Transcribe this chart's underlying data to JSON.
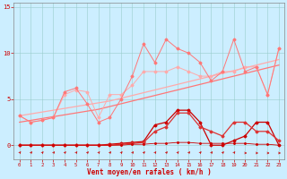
{
  "x": [
    0,
    1,
    2,
    3,
    4,
    5,
    6,
    7,
    8,
    9,
    10,
    11,
    12,
    13,
    14,
    15,
    16,
    17,
    18,
    19,
    20,
    21,
    22,
    23
  ],
  "line_light_jagged": [
    3.2,
    2.5,
    2.7,
    3.0,
    5.5,
    6.0,
    5.8,
    3.0,
    5.5,
    5.5,
    6.5,
    8.0,
    8.0,
    8.0,
    8.5,
    8.0,
    7.5,
    7.5,
    8.0,
    8.0,
    8.5,
    8.5,
    5.5,
    10.5
  ],
  "line_med_jagged": [
    3.2,
    2.5,
    2.7,
    3.0,
    5.8,
    6.2,
    4.5,
    2.5,
    3.0,
    5.0,
    7.5,
    11.0,
    9.0,
    11.5,
    10.5,
    10.0,
    9.0,
    7.0,
    8.0,
    11.5,
    8.0,
    8.5,
    5.5,
    10.5
  ],
  "trend1": [
    3.2,
    3.4,
    3.6,
    3.8,
    4.0,
    4.2,
    4.4,
    4.6,
    4.8,
    5.1,
    5.4,
    5.7,
    6.0,
    6.3,
    6.6,
    6.9,
    7.2,
    7.5,
    7.8,
    8.1,
    8.4,
    8.7,
    9.0,
    9.3
  ],
  "trend2": [
    2.5,
    2.7,
    2.9,
    3.1,
    3.3,
    3.5,
    3.7,
    3.9,
    4.2,
    4.5,
    4.8,
    5.1,
    5.4,
    5.7,
    6.0,
    6.3,
    6.6,
    6.9,
    7.2,
    7.5,
    7.8,
    8.1,
    8.4,
    8.7
  ],
  "line_dark1": [
    0.0,
    0.0,
    0.0,
    0.0,
    0.0,
    0.0,
    0.0,
    0.0,
    0.1,
    0.2,
    0.3,
    0.4,
    2.2,
    2.5,
    3.8,
    3.8,
    2.5,
    0.0,
    0.0,
    0.5,
    1.0,
    2.5,
    2.5,
    0.0
  ],
  "line_dark2": [
    0.0,
    0.0,
    0.0,
    0.0,
    0.0,
    0.0,
    0.0,
    0.0,
    0.0,
    0.1,
    0.2,
    0.3,
    1.5,
    2.0,
    3.5,
    3.5,
    2.0,
    1.5,
    1.0,
    2.5,
    2.5,
    1.5,
    1.5,
    0.5
  ],
  "line_near_zero": [
    0.0,
    0.0,
    0.0,
    0.0,
    0.0,
    0.0,
    0.0,
    0.0,
    0.0,
    0.0,
    0.1,
    0.1,
    0.2,
    0.2,
    0.3,
    0.3,
    0.2,
    0.2,
    0.2,
    0.2,
    0.2,
    0.1,
    0.1,
    0.0
  ],
  "xlim": [
    -0.5,
    23.5
  ],
  "ylim": [
    -1.5,
    15.5
  ],
  "yticks": [
    0,
    5,
    10,
    15
  ],
  "xticks": [
    0,
    1,
    2,
    3,
    4,
    5,
    6,
    7,
    8,
    9,
    10,
    11,
    12,
    13,
    14,
    15,
    16,
    17,
    18,
    19,
    20,
    21,
    22,
    23
  ],
  "xlabel": "Vent moyen/en rafales ( km/h )",
  "bg_color": "#cceeff",
  "grid_color": "#99cccc",
  "color_light": "#ffaaaa",
  "color_med": "#ff7777",
  "color_dark": "#cc0000",
  "color_darkmed": "#dd3333",
  "text_color": "#cc0000",
  "spine_color": "#888888"
}
